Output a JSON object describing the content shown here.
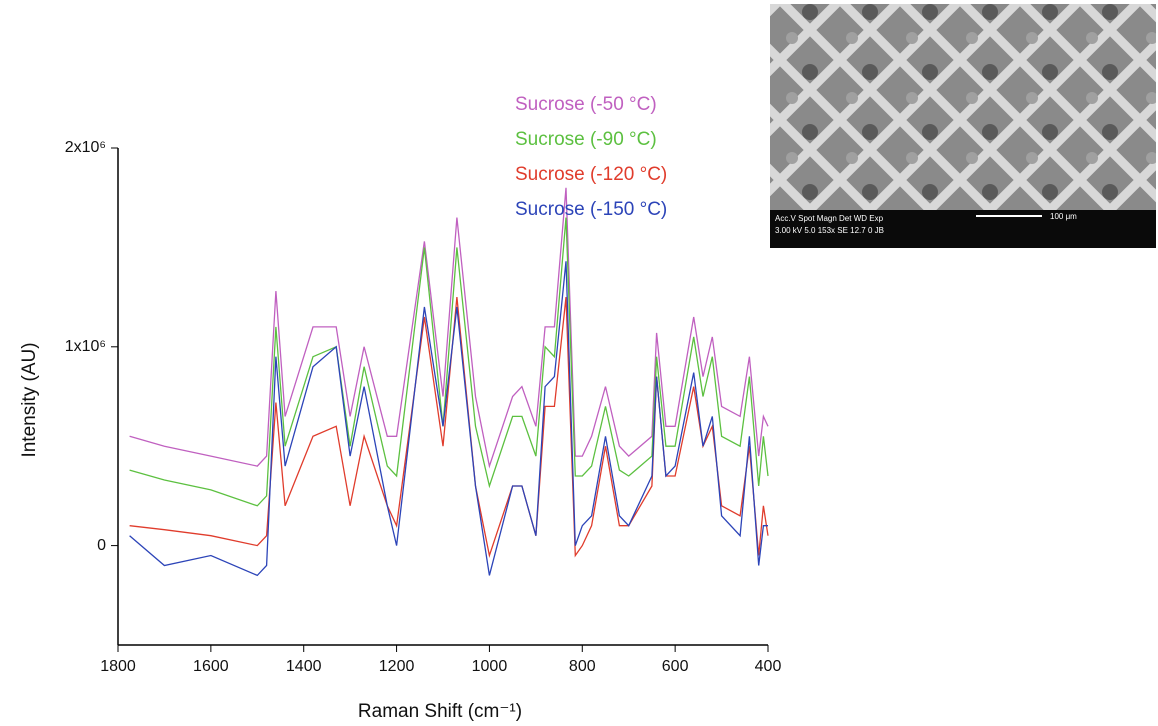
{
  "chart_data": {
    "type": "line",
    "xlabel": "Raman Shift (cm⁻¹)",
    "ylabel": "Intensity (AU)",
    "xlim": [
      1800,
      400
    ],
    "ylim": [
      -500000,
      2000000
    ],
    "xticks": [
      1800,
      1600,
      1400,
      1200,
      1000,
      800,
      600,
      400
    ],
    "yticks": [
      {
        "value": 0,
        "label": "0"
      },
      {
        "value": 1000000,
        "label": "1x10⁶"
      },
      {
        "value": 2000000,
        "label": "2x10⁶"
      }
    ],
    "x": [
      1775,
      1700,
      1600,
      1500,
      1480,
      1460,
      1440,
      1380,
      1330,
      1300,
      1270,
      1220,
      1200,
      1140,
      1100,
      1070,
      1030,
      1000,
      950,
      930,
      900,
      880,
      860,
      835,
      815,
      800,
      780,
      750,
      720,
      700,
      650,
      640,
      620,
      600,
      560,
      540,
      520,
      500,
      460,
      440,
      420,
      410,
      400
    ],
    "series": [
      {
        "name": "Sucrose (-50 °C)",
        "color": "#c060c0",
        "values": [
          550000,
          500000,
          450000,
          400000,
          450000,
          1280000,
          650000,
          1100000,
          1100000,
          650000,
          1000000,
          550000,
          550000,
          1530000,
          750000,
          1650000,
          750000,
          400000,
          750000,
          800000,
          600000,
          1100000,
          1100000,
          1800000,
          450000,
          450000,
          550000,
          800000,
          500000,
          450000,
          550000,
          1070000,
          600000,
          600000,
          1150000,
          850000,
          1050000,
          700000,
          650000,
          950000,
          450000,
          650000,
          600000
        ]
      },
      {
        "name": "Sucrose (-90 °C)",
        "color": "#5cc040",
        "values": [
          380000,
          330000,
          280000,
          200000,
          250000,
          1100000,
          500000,
          950000,
          1000000,
          500000,
          900000,
          400000,
          350000,
          1500000,
          600000,
          1500000,
          600000,
          300000,
          650000,
          650000,
          450000,
          1000000,
          950000,
          1650000,
          350000,
          350000,
          400000,
          700000,
          380000,
          350000,
          450000,
          950000,
          500000,
          500000,
          1050000,
          750000,
          950000,
          550000,
          500000,
          850000,
          300000,
          550000,
          350000
        ]
      },
      {
        "name": "Sucrose (-120 °C)",
        "color": "#e03c2c",
        "values": [
          100000,
          80000,
          50000,
          0,
          50000,
          720000,
          200000,
          550000,
          600000,
          200000,
          550000,
          200000,
          100000,
          1150000,
          500000,
          1250000,
          300000,
          -50000,
          300000,
          300000,
          50000,
          700000,
          700000,
          1250000,
          -50000,
          0,
          100000,
          500000,
          100000,
          100000,
          300000,
          850000,
          350000,
          350000,
          800000,
          500000,
          600000,
          200000,
          150000,
          500000,
          -50000,
          200000,
          50000
        ]
      },
      {
        "name": "Sucrose (-150 °C)",
        "color": "#2c44b8",
        "values": [
          50000,
          -100000,
          -50000,
          -150000,
          -100000,
          950000,
          400000,
          900000,
          1000000,
          450000,
          800000,
          200000,
          0,
          1200000,
          600000,
          1200000,
          300000,
          -150000,
          300000,
          300000,
          50000,
          800000,
          850000,
          1430000,
          0,
          100000,
          150000,
          550000,
          150000,
          100000,
          350000,
          850000,
          350000,
          400000,
          870000,
          500000,
          650000,
          150000,
          50000,
          550000,
          -100000,
          100000,
          100000
        ]
      }
    ]
  },
  "inset": {
    "header": "Acc.V  Spot Magn   Det  WD  Exp",
    "values": "3.00 kV 5.0  153x    SE  12.7  0     JB",
    "scale": "100 μm"
  }
}
